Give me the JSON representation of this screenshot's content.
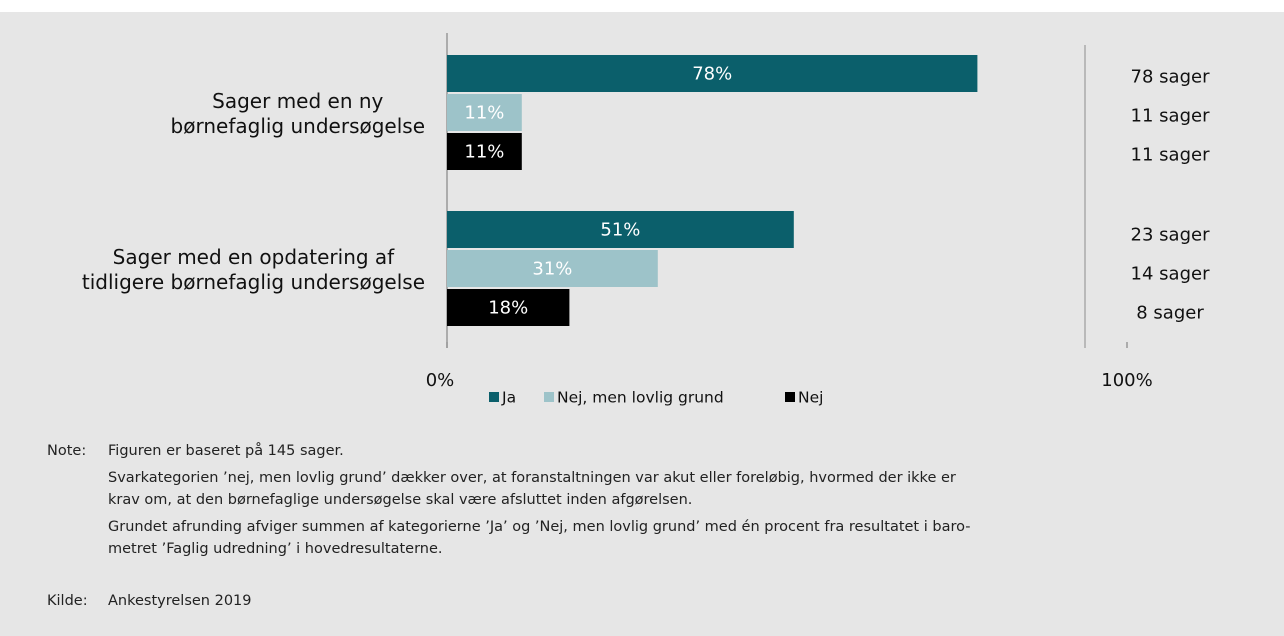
{
  "chart_data": {
    "type": "hbar",
    "categories": [
      "Sager med en ny\nbørnefaglig undersøgelse",
      "Sager med en opdatering af\ntidligere børnefaglig undersøgelse"
    ],
    "series": [
      {
        "name": "Ja",
        "color": "#0b5f6b",
        "values": [
          78,
          51
        ],
        "value_labels": [
          "78%",
          "51%"
        ],
        "count_labels": [
          "78 sager",
          "23 sager"
        ]
      },
      {
        "name": "Nej, men lovlig grund",
        "color": "#9dc3c9",
        "values": [
          11,
          31
        ],
        "value_labels": [
          "11%",
          "31%"
        ],
        "count_labels": [
          "11 sager",
          "14 sager"
        ]
      },
      {
        "name": "Nej",
        "color": "#000000",
        "values": [
          11,
          18
        ],
        "value_labels": [
          "11%",
          "18%"
        ],
        "count_labels": [
          "11 sager",
          "8 sager"
        ]
      }
    ],
    "xlim": [
      0,
      100
    ],
    "xticks": [
      {
        "value": 0,
        "label": "0%"
      },
      {
        "value": 100,
        "label": "100%"
      }
    ]
  },
  "notes": {
    "note_label": "Note:",
    "note_lines": [
      "Figuren er baseret på 145 sager.",
      "Svarkategorien ’nej, men lovlig grund’ dækker over, at foranstaltningen var akut eller foreløbig, hvormed der ikke er\nkrav om, at den børnefaglige undersøgelse skal være afsluttet inden afgørelsen.",
      "Grundet afrunding afviger summen af kategorierne ’Ja’ og ’Nej, men lovlig grund’ med én procent fra resultatet i baro-\nmetret ’Faglig udredning’ i hovedresultaterne."
    ],
    "source_label": "Kilde:",
    "source": "Ankestyrelsen 2019"
  }
}
